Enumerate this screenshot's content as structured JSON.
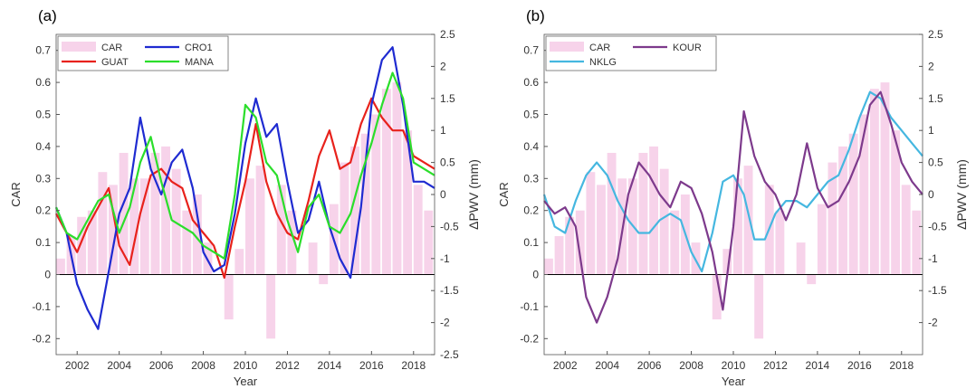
{
  "chart_data": [
    {
      "type": "line",
      "panel_label": "(a)",
      "xlabel": "Year",
      "ylabel": "CAR",
      "y2label": "ΔPWV (mm)",
      "xlim": [
        2001,
        2019
      ],
      "ylim": [
        -0.25,
        0.75
      ],
      "y2lim": [
        -2.5,
        2.5
      ],
      "x_ticks": [
        "2002",
        "2004",
        "2006",
        "2008",
        "2010",
        "2012",
        "2014",
        "2016",
        "2018"
      ],
      "y_ticks": [
        "-0.2",
        "-0.1",
        "0",
        "0.1",
        "0.2",
        "0.3",
        "0.4",
        "0.5",
        "0.6",
        "0.7"
      ],
      "y2_ticks": [
        "-2.5",
        "-2",
        "-1.5",
        "-1",
        "-0.5",
        "0",
        "0.5",
        "1",
        "1.5",
        "2",
        "2.5"
      ],
      "legend": [
        "CAR",
        "GUAT",
        "CRO1",
        "MANA"
      ],
      "bars": {
        "name": "CAR",
        "color": "#f7d3ea",
        "x": [
          2001,
          2001.5,
          2002,
          2002.5,
          2003,
          2003.5,
          2004,
          2004.5,
          2005,
          2005.5,
          2006,
          2006.5,
          2007,
          2007.5,
          2008,
          2008.5,
          2009,
          2009.5,
          2010,
          2010.5,
          2011,
          2011.5,
          2012,
          2012.5,
          2013,
          2013.5,
          2014,
          2014.5,
          2015,
          2015.5,
          2016,
          2016.5,
          2017,
          2017.5,
          2018,
          2018.5
        ],
        "values": [
          0.05,
          0.12,
          0.18,
          0.2,
          0.32,
          0.28,
          0.38,
          0.3,
          0.3,
          0.38,
          0.4,
          0.33,
          0.2,
          0.25,
          0.1,
          0.0,
          -0.14,
          0.08,
          0.3,
          0.34,
          -0.2,
          0.28,
          0.2,
          0.0,
          0.1,
          -0.03,
          0.22,
          0.35,
          0.4,
          0.44,
          0.5,
          0.58,
          0.6,
          0.45,
          0.28,
          0.2
        ]
      },
      "series": [
        {
          "name": "GUAT",
          "color": "#e8221c",
          "axis": "right",
          "x": [
            2001,
            2001.5,
            2002,
            2002.5,
            2003,
            2003.5,
            2004,
            2004.5,
            2005,
            2005.5,
            2006,
            2006.5,
            2007,
            2007.5,
            2008,
            2008.5,
            2009,
            2009.5,
            2010,
            2010.5,
            2011,
            2011.5,
            2012,
            2012.5,
            2013,
            2013.5,
            2014,
            2014.5,
            2015,
            2015.5,
            2016,
            2016.5,
            2017,
            2017.5,
            2018,
            2018.5,
            2019
          ],
          "values": [
            -0.3,
            -0.6,
            -0.9,
            -0.5,
            -0.2,
            0.1,
            -0.8,
            -1.1,
            -0.3,
            0.3,
            0.4,
            0.2,
            0.1,
            -0.4,
            -0.6,
            -0.8,
            -1.3,
            -0.5,
            0.2,
            1.1,
            0.2,
            -0.3,
            -0.6,
            -0.7,
            -0.1,
            0.6,
            1.0,
            0.4,
            0.5,
            1.1,
            1.5,
            1.2,
            1.0,
            1.0,
            0.6,
            0.5,
            0.4
          ]
        },
        {
          "name": "CRO1",
          "color": "#1f2bd1",
          "axis": "right",
          "x": [
            2001,
            2001.5,
            2002,
            2002.5,
            2003,
            2003.5,
            2004,
            2004.5,
            2005,
            2005.5,
            2006,
            2006.5,
            2007,
            2007.5,
            2008,
            2008.5,
            2009,
            2009.5,
            2010,
            2010.5,
            2011,
            2011.5,
            2012,
            2012.5,
            2013,
            2013.5,
            2014,
            2014.5,
            2015,
            2015.5,
            2016,
            2016.5,
            2017,
            2017.5,
            2018,
            2018.5,
            2019
          ],
          "values": [
            -0.2,
            -0.6,
            -1.4,
            -1.8,
            -2.1,
            -1.2,
            -0.3,
            0.1,
            1.2,
            0.4,
            0.0,
            0.5,
            0.7,
            0.1,
            -0.9,
            -1.2,
            -1.1,
            -0.3,
            0.8,
            1.5,
            0.9,
            1.1,
            0.2,
            -0.6,
            -0.4,
            0.2,
            -0.5,
            -1.0,
            -1.3,
            -0.2,
            1.4,
            2.1,
            2.3,
            1.4,
            0.2,
            0.2,
            0.1
          ]
        },
        {
          "name": "MANA",
          "color": "#2bde2b",
          "axis": "right",
          "x": [
            2001,
            2001.5,
            2002,
            2002.5,
            2003,
            2003.5,
            2004,
            2004.5,
            2005,
            2005.5,
            2006,
            2006.5,
            2007,
            2007.5,
            2008,
            2008.5,
            2009,
            2009.5,
            2010,
            2010.5,
            2011,
            2011.5,
            2012,
            2012.5,
            2013,
            2013.5,
            2014,
            2014.5,
            2015,
            2015.5,
            2016,
            2016.5,
            2017,
            2017.5,
            2018,
            2018.5,
            2019
          ],
          "values": [
            -0.2,
            -0.6,
            -0.7,
            -0.4,
            -0.1,
            0.0,
            -0.6,
            -0.2,
            0.5,
            0.9,
            0.2,
            -0.4,
            -0.5,
            -0.6,
            -0.8,
            -0.9,
            -1.0,
            0.0,
            1.4,
            1.2,
            0.5,
            0.3,
            -0.4,
            -0.9,
            -0.2,
            0.0,
            -0.5,
            -0.6,
            -0.3,
            0.3,
            0.8,
            1.4,
            1.9,
            1.5,
            0.5,
            0.4,
            0.3
          ]
        }
      ]
    },
    {
      "type": "line",
      "panel_label": "(b)",
      "xlabel": "Year",
      "ylabel": "CAR",
      "y2label": "ΔPWV (mm)",
      "xlim": [
        2001,
        2019
      ],
      "ylim": [
        -0.25,
        0.75
      ],
      "y2lim": [
        -2.5,
        2.5
      ],
      "x_ticks": [
        "2002",
        "2004",
        "2006",
        "2008",
        "2010",
        "2012",
        "2014",
        "2016",
        "2018"
      ],
      "y_ticks": [
        "-0.2",
        "-0.1",
        "0",
        "0.1",
        "0.2",
        "0.3",
        "0.4",
        "0.5",
        "0.6",
        "0.7"
      ],
      "y2_ticks": [
        "-2",
        "-1.5",
        "-1",
        "-0.5",
        "0",
        "0.5",
        "1",
        "1.5",
        "2",
        "2.5"
      ],
      "legend": [
        "CAR",
        "NKLG",
        "KOUR"
      ],
      "bars": {
        "name": "CAR",
        "color": "#f7d3ea",
        "x": [
          2001,
          2001.5,
          2002,
          2002.5,
          2003,
          2003.5,
          2004,
          2004.5,
          2005,
          2005.5,
          2006,
          2006.5,
          2007,
          2007.5,
          2008,
          2008.5,
          2009,
          2009.5,
          2010,
          2010.5,
          2011,
          2011.5,
          2012,
          2012.5,
          2013,
          2013.5,
          2014,
          2014.5,
          2015,
          2015.5,
          2016,
          2016.5,
          2017,
          2017.5,
          2018,
          2018.5
        ],
        "values": [
          0.05,
          0.12,
          0.18,
          0.2,
          0.32,
          0.28,
          0.38,
          0.3,
          0.3,
          0.38,
          0.4,
          0.33,
          0.2,
          0.25,
          0.1,
          0.0,
          -0.14,
          0.08,
          0.3,
          0.34,
          -0.2,
          0.28,
          0.2,
          0.0,
          0.1,
          -0.03,
          0.22,
          0.35,
          0.4,
          0.44,
          0.5,
          0.58,
          0.6,
          0.45,
          0.28,
          0.2
        ]
      },
      "series": [
        {
          "name": "NKLG",
          "color": "#45b7e0",
          "axis": "right",
          "x": [
            2001,
            2001.5,
            2002,
            2002.5,
            2003,
            2003.5,
            2004,
            2004.5,
            2005,
            2005.5,
            2006,
            2006.5,
            2007,
            2007.5,
            2008,
            2008.5,
            2009,
            2009.5,
            2010,
            2010.5,
            2011,
            2011.5,
            2012,
            2012.5,
            2013,
            2013.5,
            2014,
            2014.5,
            2015,
            2015.5,
            2016,
            2016.5,
            2017,
            2017.5,
            2018,
            2018.5,
            2019
          ],
          "values": [
            0.0,
            -0.5,
            -0.6,
            -0.1,
            0.3,
            0.5,
            0.3,
            -0.1,
            -0.4,
            -0.6,
            -0.6,
            -0.4,
            -0.3,
            -0.4,
            -0.9,
            -1.2,
            -0.6,
            0.2,
            0.3,
            0.0,
            -0.7,
            -0.7,
            -0.3,
            -0.1,
            -0.1,
            -0.2,
            0.0,
            0.2,
            0.3,
            0.7,
            1.2,
            1.6,
            1.5,
            1.2,
            1.0,
            0.8,
            0.6
          ]
        },
        {
          "name": "KOUR",
          "color": "#7d3a8c",
          "axis": "right",
          "x": [
            2001,
            2001.5,
            2002,
            2002.5,
            2003,
            2003.5,
            2004,
            2004.5,
            2005,
            2005.5,
            2006,
            2006.5,
            2007,
            2007.5,
            2008,
            2008.5,
            2009,
            2009.5,
            2010,
            2010.5,
            2011,
            2011.5,
            2012,
            2012.5,
            2013,
            2013.5,
            2014,
            2014.5,
            2015,
            2015.5,
            2016,
            2016.5,
            2017,
            2017.5,
            2018,
            2018.5,
            2019
          ],
          "values": [
            -0.1,
            -0.3,
            -0.2,
            -0.5,
            -1.6,
            -2.0,
            -1.6,
            -1.0,
            0.0,
            0.5,
            0.3,
            0.0,
            -0.2,
            0.2,
            0.1,
            -0.3,
            -0.9,
            -1.8,
            -0.5,
            1.3,
            0.6,
            0.2,
            0.0,
            -0.4,
            0.0,
            0.8,
            0.1,
            -0.2,
            -0.1,
            0.2,
            0.6,
            1.4,
            1.6,
            1.1,
            0.5,
            0.2,
            0.0
          ]
        }
      ]
    }
  ]
}
